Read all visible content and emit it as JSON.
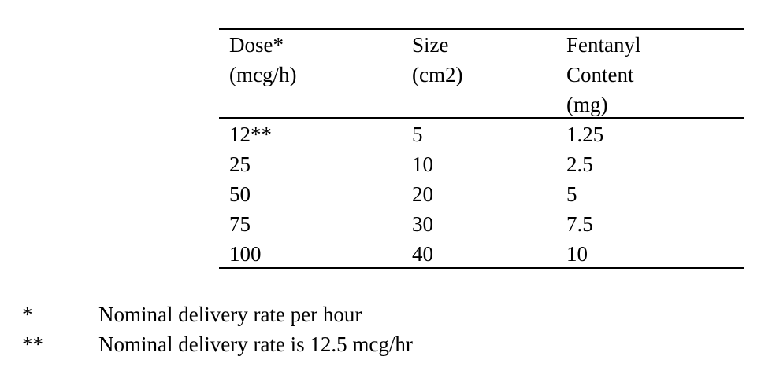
{
  "table": {
    "header": [
      [
        "Dose*",
        "(mcg/h)"
      ],
      [
        "Size",
        "(cm2)"
      ],
      [
        "Fentanyl",
        "Content",
        "(mg)"
      ]
    ],
    "rows": [
      [
        "12**",
        "5",
        "1.25"
      ],
      [
        "25",
        "10",
        "2.5"
      ],
      [
        "50",
        "20",
        "5"
      ],
      [
        "75",
        "30",
        "7.5"
      ],
      [
        "100",
        "40",
        "10"
      ]
    ]
  },
  "footnotes": [
    {
      "symbol": "*",
      "text": "Nominal delivery rate per hour"
    },
    {
      "symbol": "**",
      "text": "Nominal delivery rate is 12.5 mcg/hr"
    }
  ]
}
